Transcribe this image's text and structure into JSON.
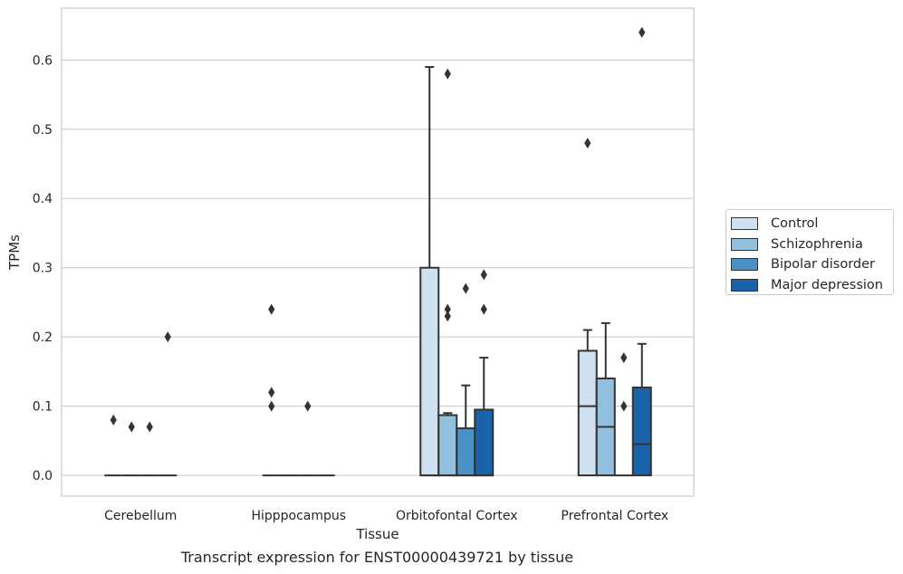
{
  "chart_data": {
    "type": "boxplot",
    "xlabel": "Tissue",
    "ylabel": "TPMs",
    "caption": "Transcript expression for ENST00000439721 by tissue",
    "ylim": [
      -0.03,
      0.675
    ],
    "yticks": [
      "0.0",
      "0.1",
      "0.2",
      "0.3",
      "0.4",
      "0.5",
      "0.6"
    ],
    "grid": true,
    "legend_position": "right",
    "categories": [
      "Cerebellum",
      "Hipppocampus",
      "Orbitofontal Cortex",
      "Prefrontal Cortex"
    ],
    "series": [
      {
        "name": "Control",
        "color": "#cfe0f1",
        "boxes": [
          {
            "q1": 0,
            "median": 0,
            "q3": 0,
            "whislo": 0,
            "whishi": 0,
            "fliers": [
              0.08
            ]
          },
          {
            "q1": 0,
            "median": 0,
            "q3": 0,
            "whislo": 0,
            "whishi": 0,
            "fliers": [
              0.24,
              0.12,
              0.1
            ]
          },
          {
            "q1": 0,
            "median": 0,
            "q3": 0.3,
            "whislo": 0,
            "whishi": 0.59,
            "fliers": []
          },
          {
            "q1": 0,
            "median": 0.1,
            "q3": 0.18,
            "whislo": 0,
            "whishi": 0.21,
            "fliers": [
              0.48
            ]
          }
        ]
      },
      {
        "name": "Schizophrenia",
        "color": "#93c0de",
        "boxes": [
          {
            "q1": 0,
            "median": 0,
            "q3": 0,
            "whislo": 0,
            "whishi": 0,
            "fliers": [
              0.07
            ]
          },
          {
            "q1": 0,
            "median": 0,
            "q3": 0,
            "whislo": 0,
            "whishi": 0,
            "fliers": []
          },
          {
            "q1": 0,
            "median": 0,
            "q3": 0.087,
            "whislo": 0,
            "whishi": 0.09,
            "fliers": [
              0.58,
              0.24,
              0.23
            ]
          },
          {
            "q1": 0,
            "median": 0.07,
            "q3": 0.14,
            "whislo": 0,
            "whishi": 0.22,
            "fliers": []
          }
        ]
      },
      {
        "name": "Bipolar disorder",
        "color": "#4a91c5",
        "boxes": [
          {
            "q1": 0,
            "median": 0,
            "q3": 0,
            "whislo": 0,
            "whishi": 0,
            "fliers": [
              0.07
            ]
          },
          {
            "q1": 0,
            "median": 0,
            "q3": 0,
            "whislo": 0,
            "whishi": 0,
            "fliers": [
              0.1
            ]
          },
          {
            "q1": 0,
            "median": 0,
            "q3": 0.068,
            "whislo": 0,
            "whishi": 0.13,
            "fliers": [
              0.27
            ]
          },
          {
            "q1": 0,
            "median": 0,
            "q3": 0,
            "whislo": 0,
            "whishi": 0,
            "fliers": [
              0.17,
              0.1
            ]
          }
        ]
      },
      {
        "name": "Major depression",
        "color": "#1a63a8",
        "boxes": [
          {
            "q1": 0,
            "median": 0,
            "q3": 0,
            "whislo": 0,
            "whishi": 0,
            "fliers": [
              0.2
            ]
          },
          {
            "q1": 0,
            "median": 0,
            "q3": 0,
            "whislo": 0,
            "whishi": 0,
            "fliers": []
          },
          {
            "q1": 0,
            "median": 0,
            "q3": 0.095,
            "whislo": 0,
            "whishi": 0.17,
            "fliers": [
              0.29,
              0.24
            ]
          },
          {
            "q1": 0,
            "median": 0.045,
            "q3": 0.127,
            "whislo": 0,
            "whishi": 0.19,
            "fliers": [
              0.64
            ]
          }
        ]
      }
    ]
  }
}
